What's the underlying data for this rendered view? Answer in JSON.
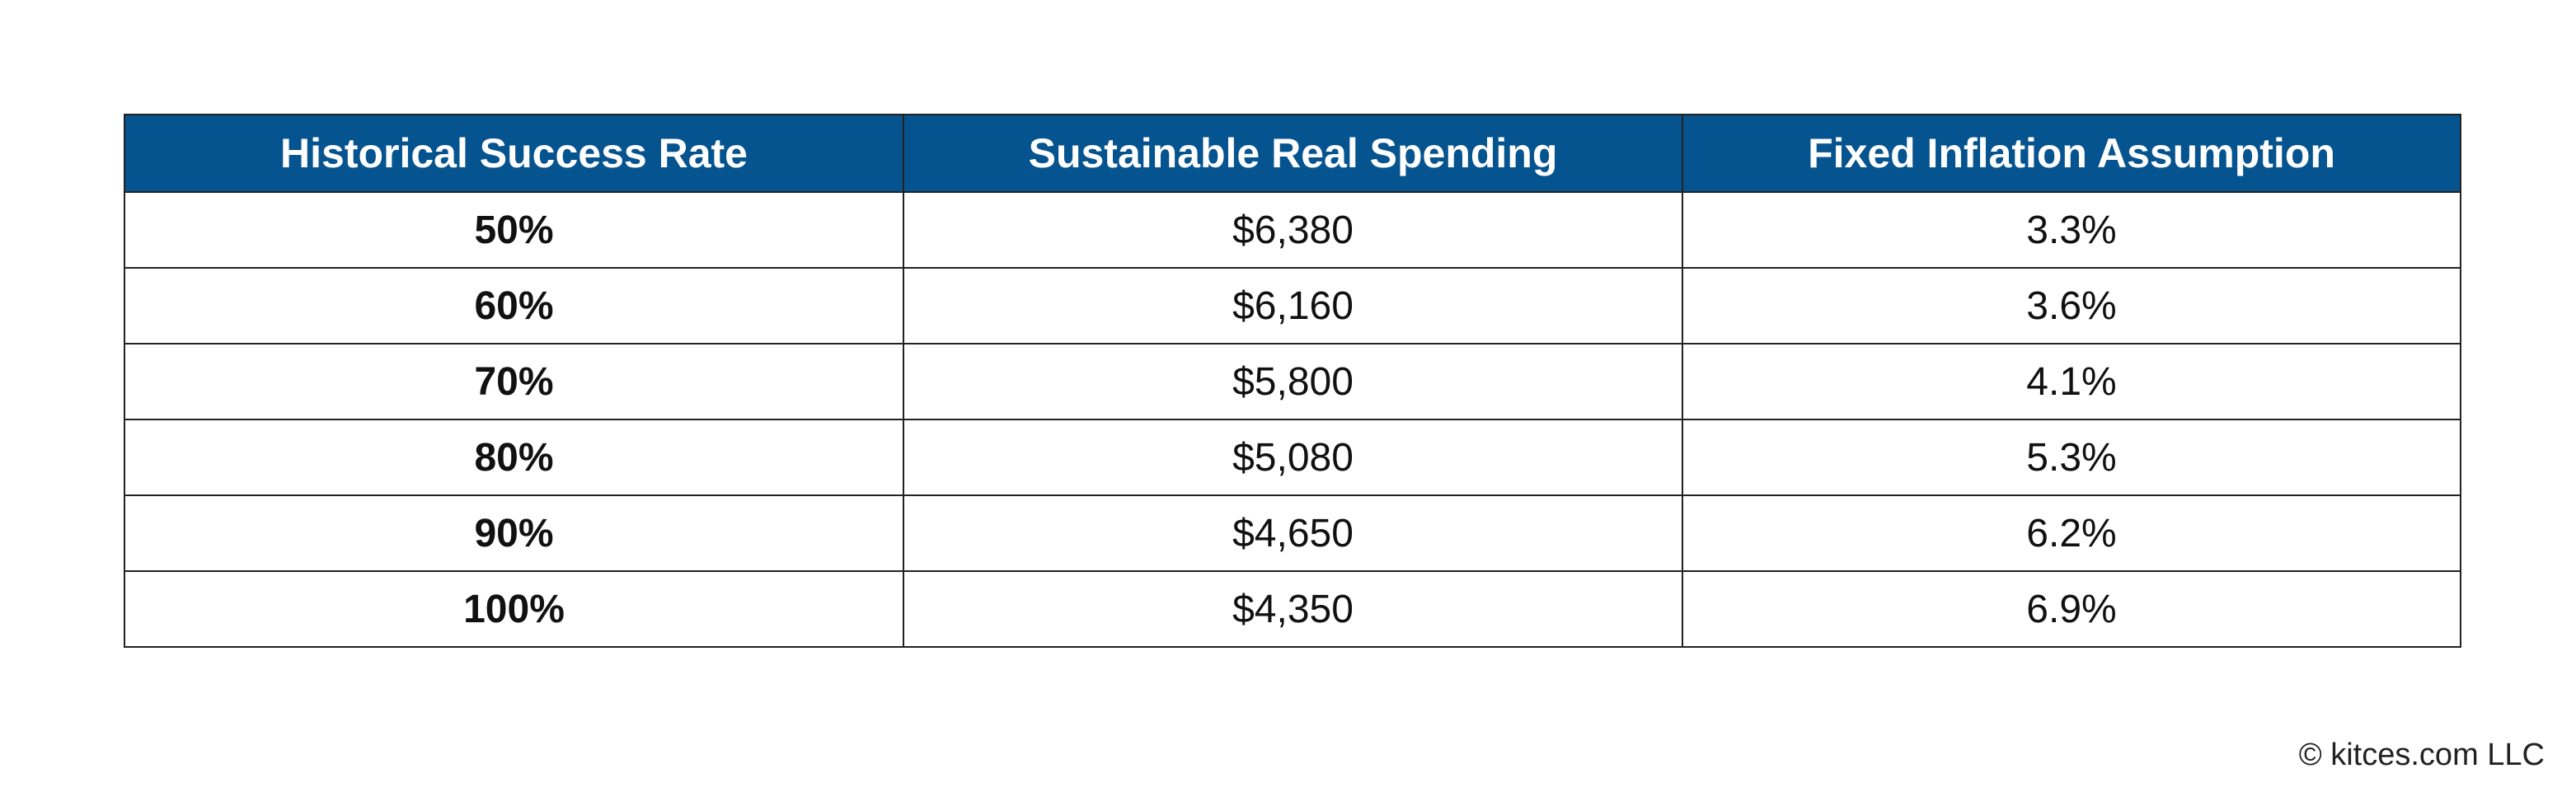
{
  "table": {
    "headers": [
      "Historical Success Rate",
      "Sustainable Real Spending",
      "Fixed Inflation Assumption"
    ],
    "rows": [
      [
        "50%",
        "$6,380",
        "3.3%"
      ],
      [
        "60%",
        "$6,160",
        "3.6%"
      ],
      [
        "70%",
        "$5,800",
        "4.1%"
      ],
      [
        "80%",
        "$5,080",
        "5.3%"
      ],
      [
        "90%",
        "$4,650",
        "6.2%"
      ],
      [
        "100%",
        "$4,350",
        "6.9%"
      ]
    ]
  },
  "footer": {
    "credit": "© kitces.com LLC"
  },
  "colors": {
    "header_background": "#06548f",
    "header_text": "#ffffff",
    "border": "#222222"
  }
}
